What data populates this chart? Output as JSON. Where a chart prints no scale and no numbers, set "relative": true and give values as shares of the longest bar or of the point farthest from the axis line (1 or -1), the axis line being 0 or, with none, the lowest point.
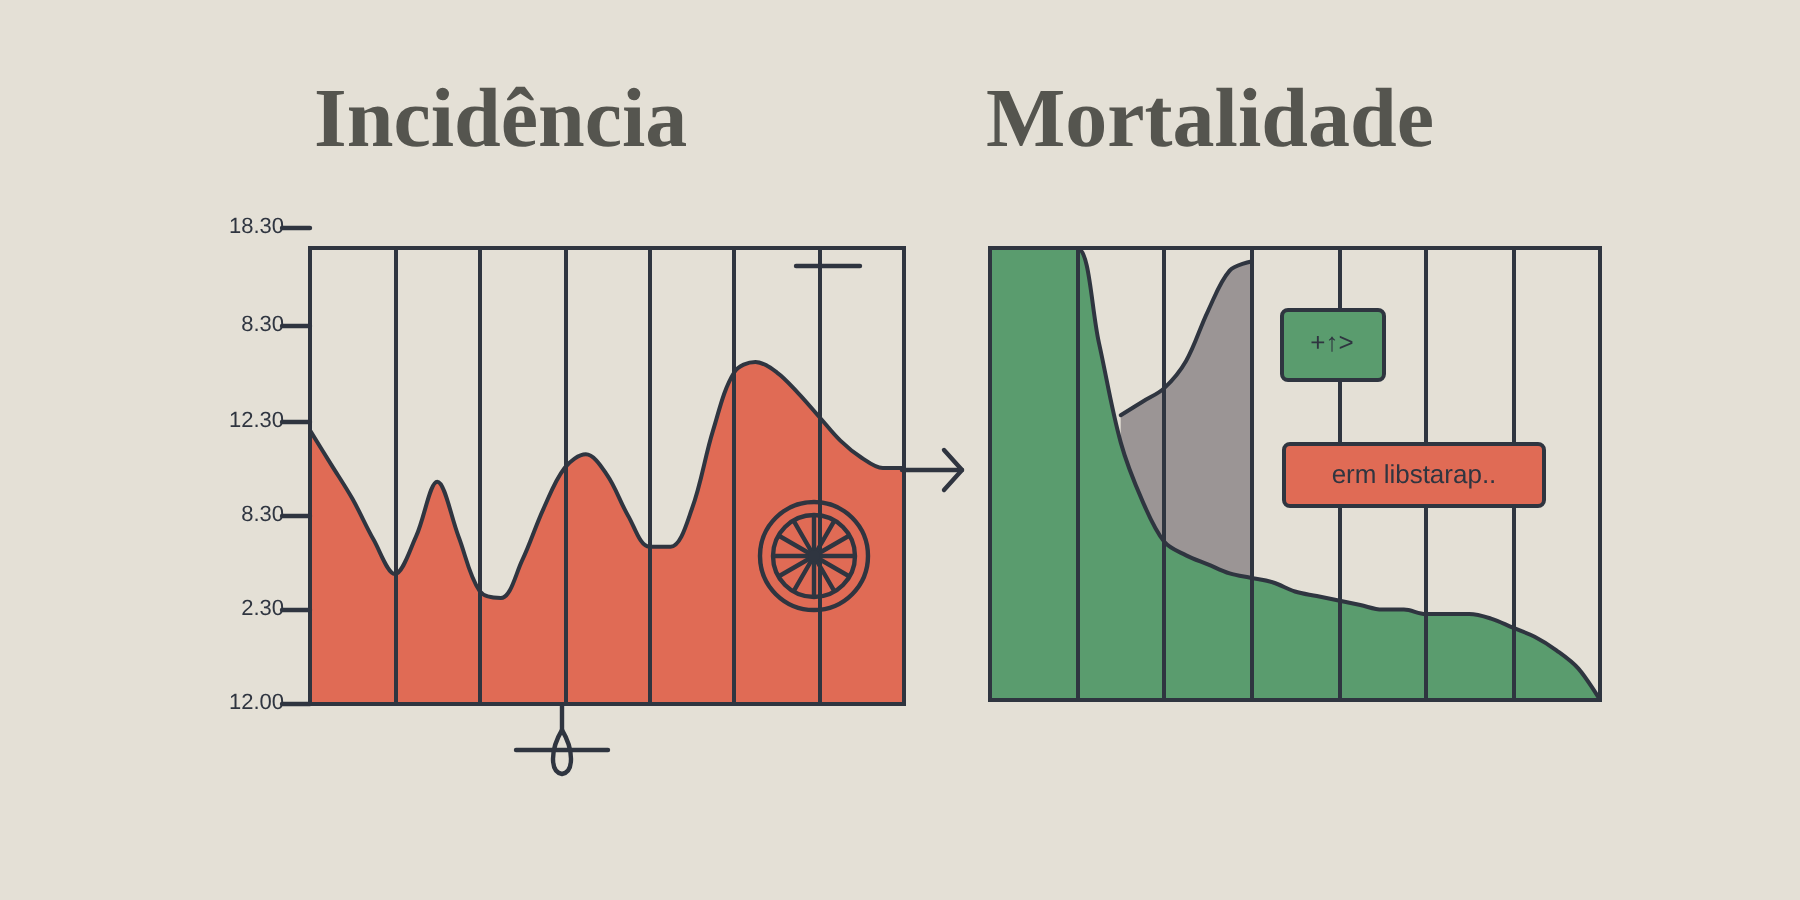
{
  "chart_data": [
    {
      "type": "area",
      "title": "Incidência",
      "categories": [
        null,
        null,
        null,
        null,
        null,
        null,
        null,
        null,
        null,
        null,
        null,
        null,
        null,
        null,
        null,
        null,
        null,
        null,
        null,
        null,
        null,
        null,
        null,
        null,
        null,
        null,
        null,
        null,
        null
      ],
      "values": [
        0.8,
        0.7,
        0.6,
        0.48,
        0.38,
        0.49,
        0.65,
        0.49,
        0.33,
        0.31,
        0.42,
        0.57,
        0.69,
        0.73,
        0.67,
        0.55,
        0.46,
        0.46,
        0.57,
        0.8,
        0.97,
        1,
        0.97,
        0.91,
        0.84,
        0.77,
        0.72,
        0.69,
        0.69
      ],
      "color": "#e06b55",
      "relative": true,
      "grid": "x",
      "annotations": [
        "18.30",
        "8.30",
        "12.30",
        "8.30",
        "2.30",
        "12.00"
      ]
    },
    {
      "type": "area",
      "title": "Mortalidade",
      "categories": [
        null,
        null,
        null,
        null,
        null,
        null,
        null,
        null,
        null,
        null,
        null,
        null,
        null,
        null,
        null,
        null,
        null,
        null,
        null,
        null,
        null,
        null,
        null,
        null,
        null,
        null,
        null,
        null,
        null
      ],
      "series": [
        {
          "color": "#9b9595",
          "values": [
            null,
            null,
            null,
            null,
            null,
            null,
            0.63,
            0.66,
            0.69,
            0.75,
            0.86,
            0.95,
            0.97,
            null,
            null,
            null,
            null,
            null,
            null,
            null,
            null,
            null,
            null,
            null,
            null,
            null,
            null,
            null,
            null
          ]
        },
        {
          "color": "#5a9c6e",
          "values": [
            1,
            1,
            1,
            1,
            1,
            0.79,
            0.57,
            0.44,
            0.35,
            0.32,
            0.3,
            0.28,
            0.27,
            0.26,
            0.24,
            0.23,
            0.22,
            0.21,
            0.2,
            0.2,
            0.19,
            0.19,
            0.19,
            0.18,
            0.16,
            0.14,
            0.11,
            0.07,
            0
          ]
        }
      ],
      "relative": true,
      "grid": "x",
      "annotations": [
        "+↑>",
        "erm libstarap.."
      ]
    }
  ]
}
